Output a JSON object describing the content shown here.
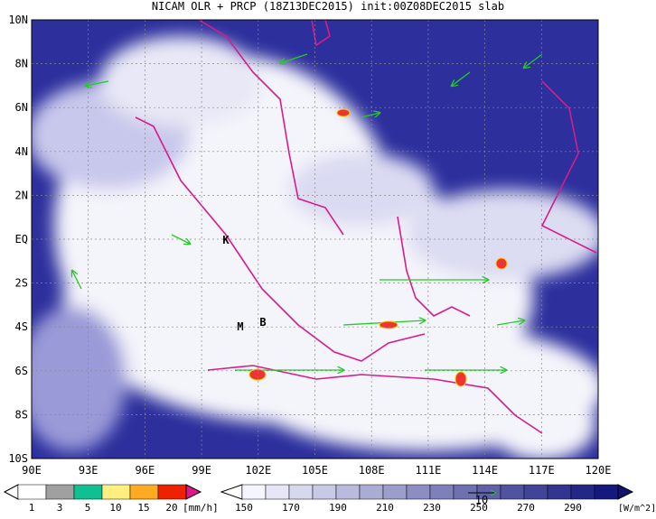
{
  "title": "NICAM OLR + PRCP (18Z13DEC2015) init:00Z08DEC2015 slab",
  "map": {
    "lat_labels": [
      "10N",
      "8N",
      "6N",
      "4N",
      "2N",
      "EQ",
      "2S",
      "4S",
      "6S",
      "8S",
      "10S"
    ],
    "lon_labels": [
      "90E",
      "93E",
      "96E",
      "99E",
      "102E",
      "105E",
      "108E",
      "111E",
      "114E",
      "117E",
      "120E"
    ],
    "markers": [
      "K",
      "M",
      "B"
    ]
  },
  "precip_bar": {
    "labels": [
      "1",
      "3",
      "5",
      "10",
      "15",
      "20"
    ],
    "unit": "[mm/h]"
  },
  "olr_bar": {
    "labels": [
      "150",
      "170",
      "190",
      "210",
      "230",
      "250",
      "270",
      "290"
    ],
    "unit": "[W/m^2]",
    "vector_label": "10"
  }
}
